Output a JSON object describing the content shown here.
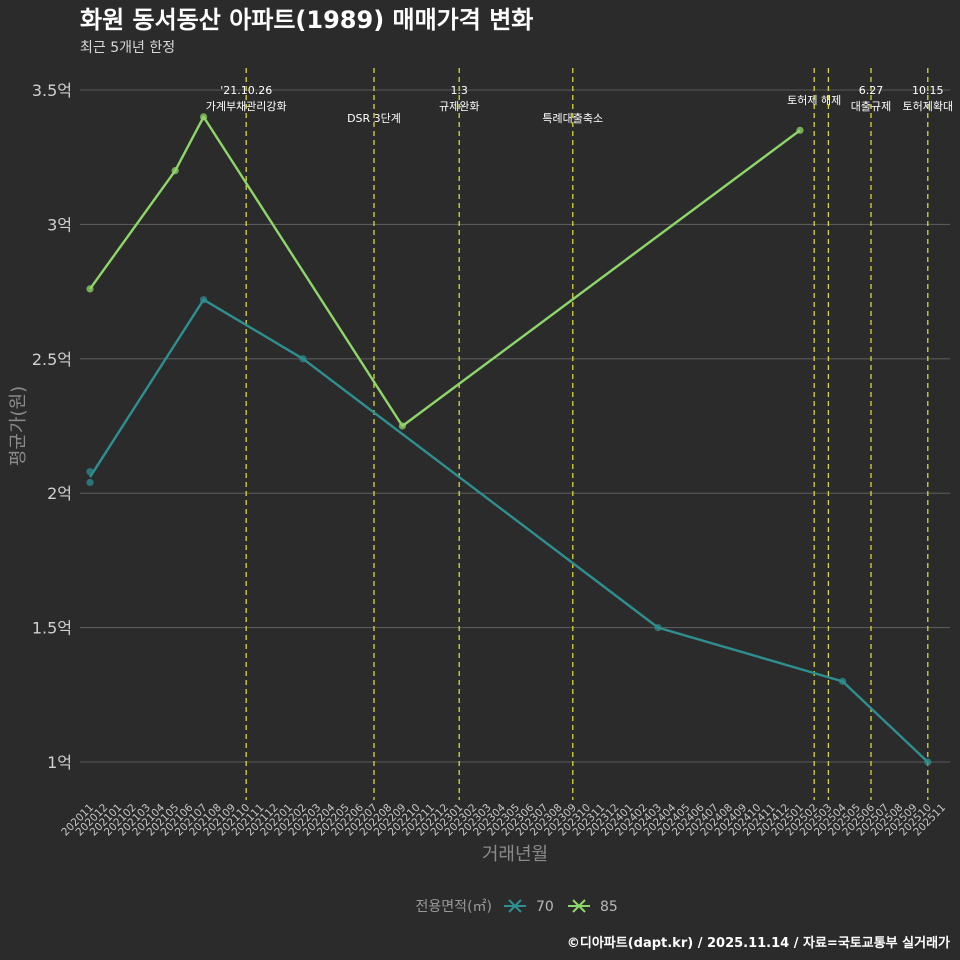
{
  "chart_data": {
    "type": "line",
    "title": "화원 동서동산 아파트(1989) 매매가격 변화",
    "subtitle": "최근 5개년 한정",
    "xlabel": "거래년월",
    "ylabel": "평균가(원)",
    "ylim": [
      0.9,
      3.55
    ],
    "yticks": [
      {
        "value": 1,
        "label": "1억"
      },
      {
        "value": 1.5,
        "label": "1.5억"
      },
      {
        "value": 2,
        "label": "2억"
      },
      {
        "value": 2.5,
        "label": "2.5억"
      },
      {
        "value": 3,
        "label": "3억"
      },
      {
        "value": 3.5,
        "label": "3.5억"
      }
    ],
    "categories": [
      "202011",
      "202012",
      "202101",
      "202102",
      "202103",
      "202104",
      "202105",
      "202106",
      "202107",
      "202108",
      "202109",
      "202110",
      "202111",
      "202112",
      "202201",
      "202202",
      "202203",
      "202204",
      "202205",
      "202206",
      "202207",
      "202208",
      "202209",
      "202210",
      "202211",
      "202212",
      "202301",
      "202302",
      "202303",
      "202304",
      "202305",
      "202306",
      "202307",
      "202308",
      "202309",
      "202310",
      "202311",
      "202312",
      "202401",
      "202402",
      "202403",
      "202404",
      "202405",
      "202406",
      "202407",
      "202408",
      "202409",
      "202410",
      "202411",
      "202412",
      "202501",
      "202502",
      "202503",
      "202504",
      "202505",
      "202506",
      "202507",
      "202508",
      "202509",
      "202510",
      "202511"
    ],
    "series": [
      {
        "name": "70",
        "color": "#2e8f8f",
        "points": [
          {
            "x": "202011",
            "y": 2.04
          },
          {
            "x": "202011",
            "y": 2.08
          },
          {
            "x": "202107",
            "y": 2.72
          },
          {
            "x": "202202",
            "y": 2.5
          },
          {
            "x": "202403",
            "y": 1.5
          },
          {
            "x": "202504",
            "y": 1.3
          },
          {
            "x": "202510",
            "y": 1.0
          }
        ],
        "line": [
          {
            "x": "202011",
            "y": 2.06
          },
          {
            "x": "202107",
            "y": 2.72
          },
          {
            "x": "202202",
            "y": 2.5
          },
          {
            "x": "202403",
            "y": 1.5
          },
          {
            "x": "202504",
            "y": 1.3
          },
          {
            "x": "202510",
            "y": 1.0
          }
        ]
      },
      {
        "name": "85",
        "color": "#8fd66a",
        "points": [
          {
            "x": "202011",
            "y": 2.76
          },
          {
            "x": "202105",
            "y": 3.2
          },
          {
            "x": "202107",
            "y": 3.4
          },
          {
            "x": "202209",
            "y": 2.25
          },
          {
            "x": "202501",
            "y": 3.35
          }
        ],
        "line": [
          {
            "x": "202011",
            "y": 2.76
          },
          {
            "x": "202105",
            "y": 3.2
          },
          {
            "x": "202107",
            "y": 3.4
          },
          {
            "x": "202209",
            "y": 2.25
          },
          {
            "x": "202501",
            "y": 3.35
          }
        ]
      }
    ],
    "events": [
      {
        "x": "202110",
        "lines": [
          "'21.10.26",
          "가계부채관리강화"
        ],
        "level": 1
      },
      {
        "x": "202207",
        "lines": [
          "DSR 3단계"
        ],
        "level": 2
      },
      {
        "x": "202301",
        "lines": [
          "1.3",
          "규제완화"
        ],
        "level": 1
      },
      {
        "x": "202309",
        "lines": [
          "특례대출축소"
        ],
        "level": 2
      },
      {
        "x": "202502",
        "lines": [
          "토허제 해제"
        ],
        "level": 0,
        "anchor_shift": 0
      },
      {
        "x": "202503",
        "lines": [],
        "level": 0
      },
      {
        "x": "202506",
        "lines": [
          "6.27",
          "대출규제"
        ],
        "level": 1
      },
      {
        "x": "202510",
        "lines": [
          "10.15",
          "토허제확대"
        ],
        "level": 1
      }
    ],
    "event_color": "#d8d83a",
    "legend": {
      "title": "전용면적(㎡)",
      "position": "bottom",
      "entries": [
        "70",
        "85"
      ]
    },
    "caption": "©디아파트(dapt.kr) / 2025.11.14 / 자료=국토교통부 실거래가"
  }
}
